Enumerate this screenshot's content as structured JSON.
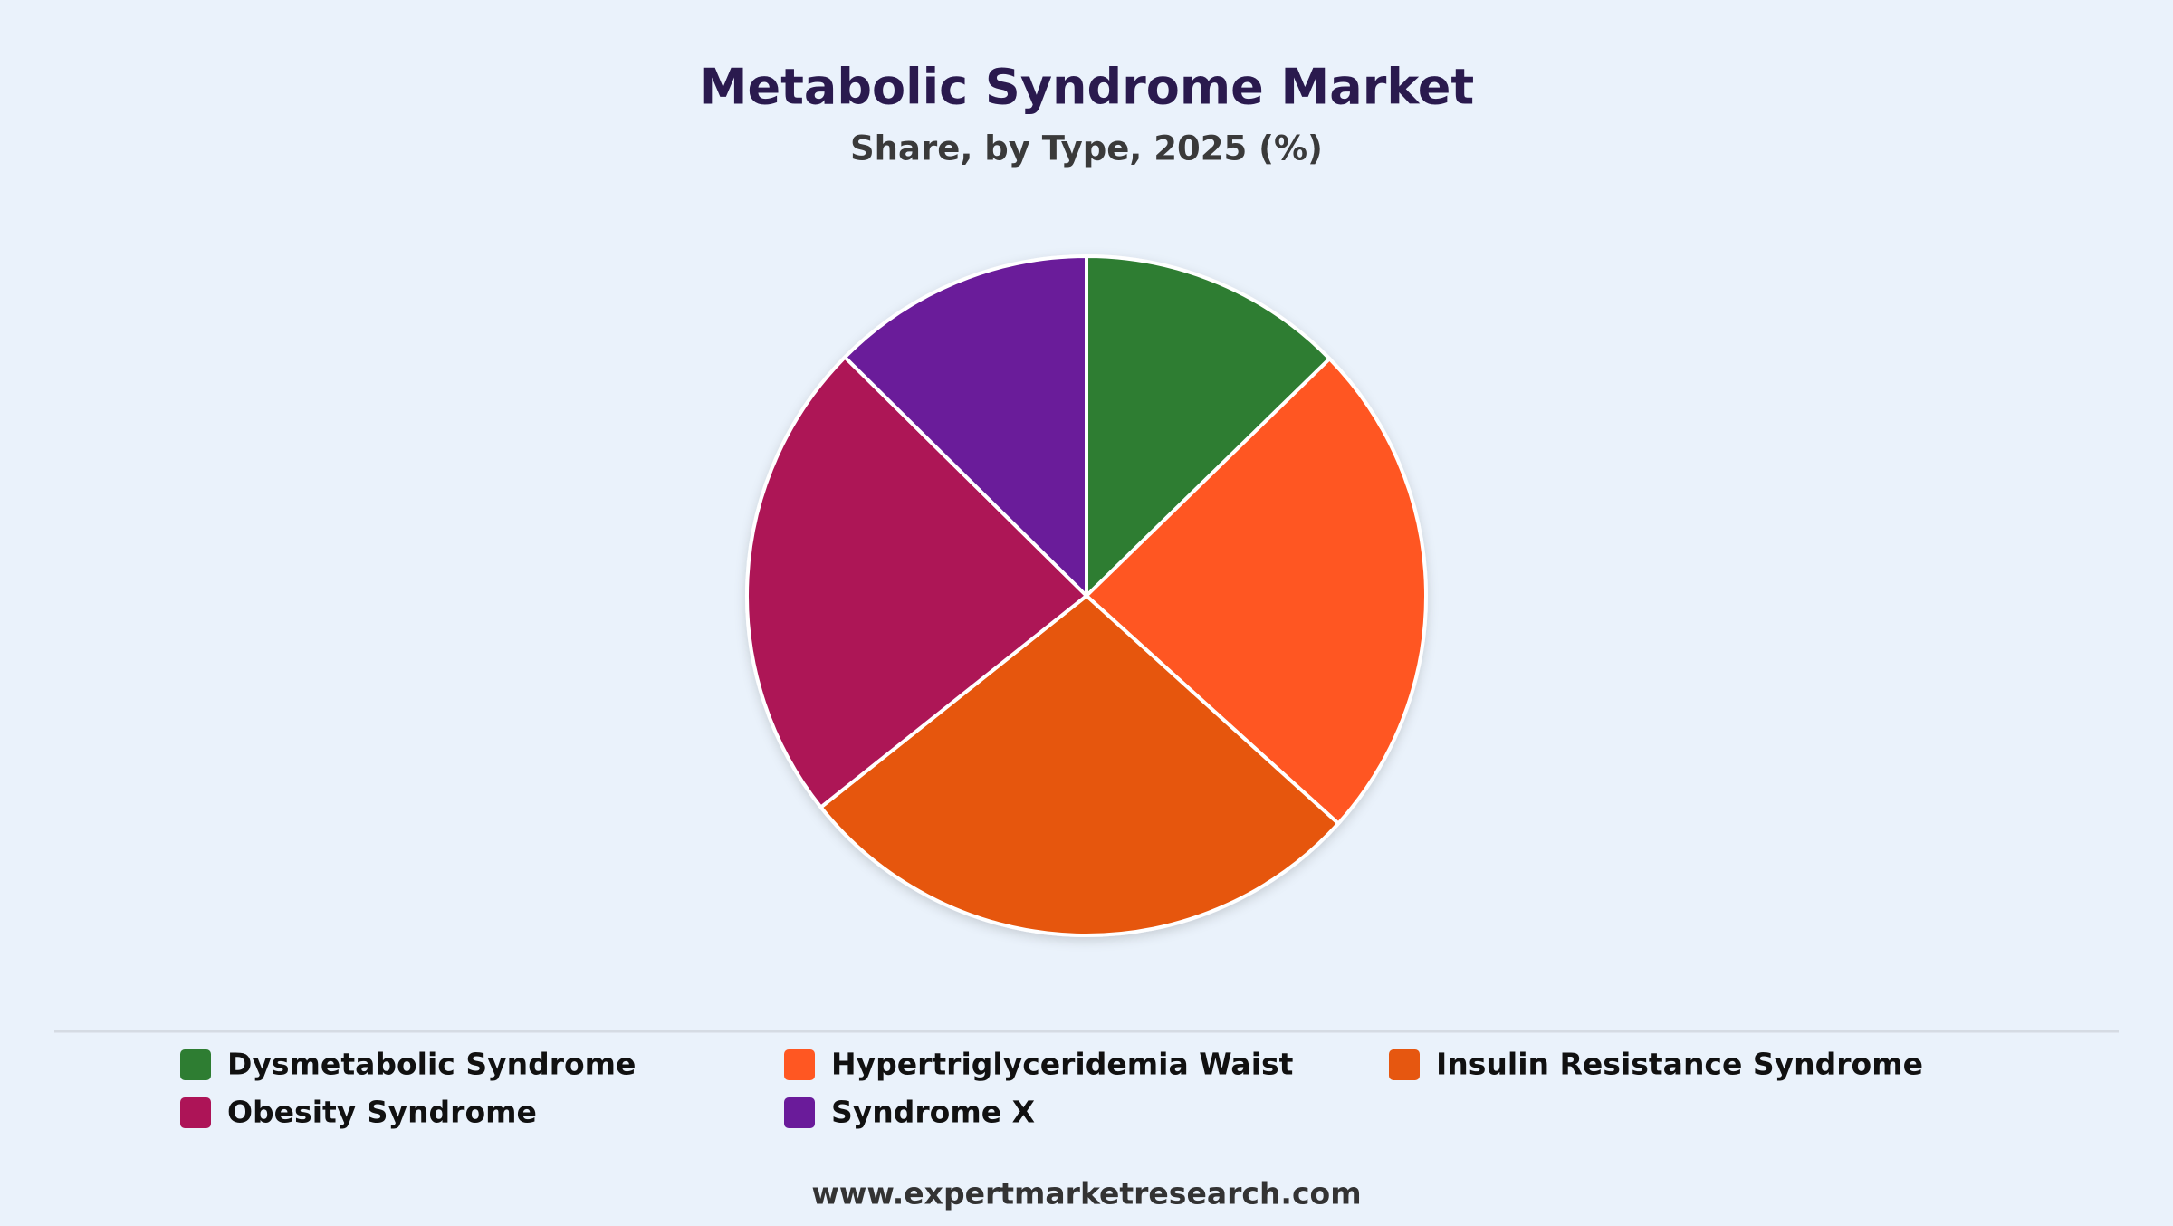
{
  "chart_data": {
    "type": "pie",
    "title": "Metabolic Syndrome Market",
    "subtitle": "Share, by Type, 2025 (%)",
    "categories": [
      "Dysmetabolic Syndrome",
      "Hypertriglyceridemia Waist",
      "Insulin Resistance Syndrome",
      "Obesity Syndrome",
      "Syndrome X"
    ],
    "values": [
      12.7,
      24,
      27.6,
      23.1,
      12.6
    ],
    "colors": [
      "#2e7d32",
      "#ff5722",
      "#e65710",
      "#ad1457",
      "#6a1b9a"
    ],
    "source": "www.expertmarketresearch.com"
  }
}
